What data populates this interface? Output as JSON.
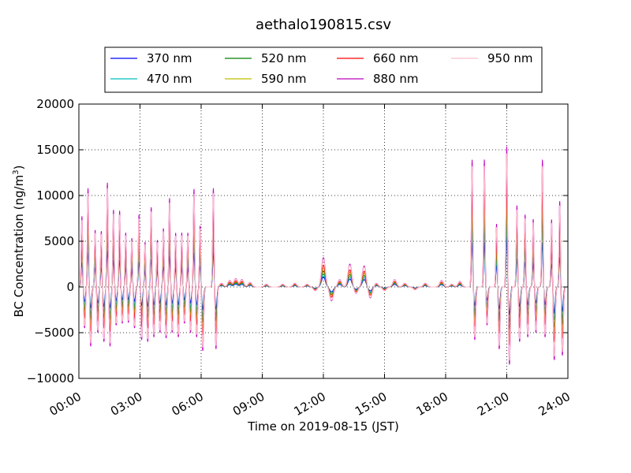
{
  "chart_data": {
    "type": "line",
    "title": "aethalo190815.csv",
    "xlabel": "Time on 2019-08-15 (JST)",
    "ylabel_main": "BC Concentration (ng/m",
    "ylabel_sup": "3",
    "ylabel_tail": ")",
    "xlim_hours": [
      0,
      24
    ],
    "ylim": [
      -10000,
      20000
    ],
    "grid": true,
    "legend_placement": "top-center",
    "x_ticks": [
      "00:00",
      "03:00",
      "06:00",
      "09:00",
      "12:00",
      "15:00",
      "18:00",
      "21:00",
      "24:00"
    ],
    "y_ticks": [
      "20000",
      "15000",
      "10000",
      "5000",
      "0",
      "−5000",
      "−10000"
    ],
    "series": [
      {
        "name": "370 nm",
        "color": "#0000ff",
        "scale": 0.35
      },
      {
        "name": "470 nm",
        "color": "#00bfbf",
        "scale": 0.45
      },
      {
        "name": "520 nm",
        "color": "#008000",
        "scale": 0.55
      },
      {
        "name": "590 nm",
        "color": "#bfbf00",
        "scale": 0.65
      },
      {
        "name": "660 nm",
        "color": "#ff0000",
        "scale": 0.75
      },
      {
        "name": "880 nm",
        "color": "#bf00bf",
        "scale": 1.0
      },
      {
        "name": "950 nm",
        "color": "#ffc0cb",
        "scale": 0.95
      }
    ],
    "spikes": [
      {
        "t": 0.15,
        "peak": 7800,
        "trough": -4500
      },
      {
        "t": 0.45,
        "peak": 10900,
        "trough": -6500
      },
      {
        "t": 0.8,
        "peak": 6300,
        "trough": -5000
      },
      {
        "t": 1.1,
        "peak": 6200,
        "trough": -6000
      },
      {
        "t": 1.4,
        "peak": 11500,
        "trough": -6500
      },
      {
        "t": 1.7,
        "peak": 8500,
        "trough": -4200
      },
      {
        "t": 2.0,
        "peak": 8400,
        "trough": -4000
      },
      {
        "t": 2.3,
        "peak": 6000,
        "trough": -3900
      },
      {
        "t": 2.6,
        "peak": 5400,
        "trough": -4500
      },
      {
        "t": 2.95,
        "peak": 8000,
        "trough": -5800
      },
      {
        "t": 3.25,
        "peak": 5000,
        "trough": -6000
      },
      {
        "t": 3.55,
        "peak": 8800,
        "trough": -5500
      },
      {
        "t": 3.85,
        "peak": 5200,
        "trough": -5000
      },
      {
        "t": 4.15,
        "peak": 6500,
        "trough": -5600
      },
      {
        "t": 4.45,
        "peak": 9800,
        "trough": -5000
      },
      {
        "t": 4.75,
        "peak": 6000,
        "trough": -5500
      },
      {
        "t": 5.05,
        "peak": 6000,
        "trough": -4000
      },
      {
        "t": 5.35,
        "peak": 6000,
        "trough": -5000
      },
      {
        "t": 5.65,
        "peak": 10800,
        "trough": -5500
      },
      {
        "t": 5.95,
        "peak": 6800,
        "trough": -7000
      },
      {
        "t": 6.6,
        "peak": 10900,
        "trough": -6800
      },
      {
        "t": 19.3,
        "peak": 14000,
        "trough": -5800
      },
      {
        "t": 19.9,
        "peak": 14000,
        "trough": -4200
      },
      {
        "t": 20.5,
        "peak": 7000,
        "trough": -6800
      },
      {
        "t": 21.0,
        "peak": 15500,
        "trough": -8500
      },
      {
        "t": 21.5,
        "peak": 9000,
        "trough": -6000
      },
      {
        "t": 21.9,
        "peak": 8000,
        "trough": -5500
      },
      {
        "t": 22.3,
        "peak": 7500,
        "trough": -5000
      },
      {
        "t": 22.75,
        "peak": 14000,
        "trough": -5500
      },
      {
        "t": 23.2,
        "peak": 7500,
        "trough": -8000
      },
      {
        "t": 23.6,
        "peak": 9500,
        "trough": -7500
      }
    ],
    "bumps": [
      {
        "t": 7.0,
        "v": 400
      },
      {
        "t": 7.4,
        "v": 700
      },
      {
        "t": 7.7,
        "v": 900
      },
      {
        "t": 8.0,
        "v": 800
      },
      {
        "t": 8.4,
        "v": 500
      },
      {
        "t": 9.2,
        "v": 300
      },
      {
        "t": 10.0,
        "v": 300
      },
      {
        "t": 10.6,
        "v": 400
      },
      {
        "t": 11.2,
        "v": 300
      },
      {
        "t": 11.6,
        "v": -400
      },
      {
        "t": 12.0,
        "v": 3200
      },
      {
        "t": 12.4,
        "v": -1500
      },
      {
        "t": 12.8,
        "v": 800
      },
      {
        "t": 13.3,
        "v": 2500
      },
      {
        "t": 13.6,
        "v": -700
      },
      {
        "t": 14.0,
        "v": 2300
      },
      {
        "t": 14.3,
        "v": -1200
      },
      {
        "t": 14.6,
        "v": 400
      },
      {
        "t": 15.0,
        "v": -400
      },
      {
        "t": 15.5,
        "v": 800
      },
      {
        "t": 16.0,
        "v": 400
      },
      {
        "t": 16.5,
        "v": -300
      },
      {
        "t": 17.0,
        "v": 400
      },
      {
        "t": 17.8,
        "v": 700
      },
      {
        "t": 18.3,
        "v": 300
      },
      {
        "t": 18.7,
        "v": 600
      }
    ]
  }
}
